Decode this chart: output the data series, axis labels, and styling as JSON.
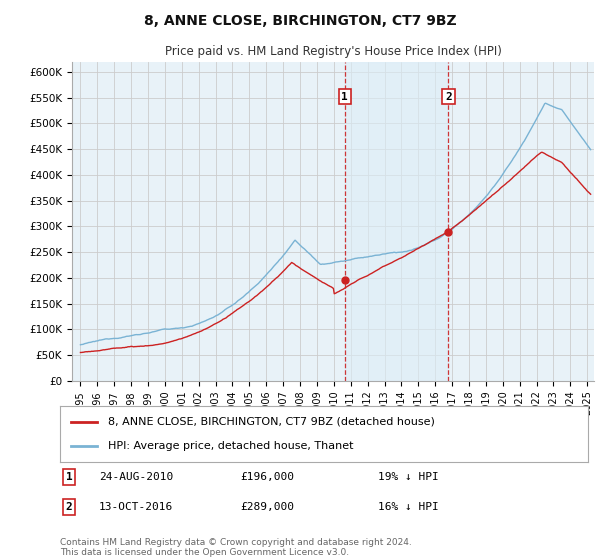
{
  "title": "8, ANNE CLOSE, BIRCHINGTON, CT7 9BZ",
  "subtitle": "Price paid vs. HM Land Registry's House Price Index (HPI)",
  "ylabel_ticks": [
    "£0",
    "£50K",
    "£100K",
    "£150K",
    "£200K",
    "£250K",
    "£300K",
    "£350K",
    "£400K",
    "£450K",
    "£500K",
    "£550K",
    "£600K"
  ],
  "ytick_values": [
    0,
    50000,
    100000,
    150000,
    200000,
    250000,
    300000,
    350000,
    400000,
    450000,
    500000,
    550000,
    600000
  ],
  "ylim": [
    0,
    620000
  ],
  "xlim_start": 1994.5,
  "xlim_end": 2025.4,
  "hpi_color": "#7ab3d4",
  "hpi_fill_color": "#ddeef7",
  "price_color": "#cc2222",
  "sale1_x": 2010.65,
  "sale1_y": 196000,
  "sale1_label": "1",
  "sale1_date": "24-AUG-2010",
  "sale1_price": "£196,000",
  "sale1_note": "19% ↓ HPI",
  "sale2_x": 2016.78,
  "sale2_y": 289000,
  "sale2_label": "2",
  "sale2_date": "13-OCT-2016",
  "sale2_price": "£289,000",
  "sale2_note": "16% ↓ HPI",
  "legend_line1": "8, ANNE CLOSE, BIRCHINGTON, CT7 9BZ (detached house)",
  "legend_line2": "HPI: Average price, detached house, Thanet",
  "footer": "Contains HM Land Registry data © Crown copyright and database right 2024.\nThis data is licensed under the Open Government Licence v3.0.",
  "background_color": "#ffffff",
  "grid_color": "#cccccc",
  "plot_bg_color": "#e8f2f8"
}
